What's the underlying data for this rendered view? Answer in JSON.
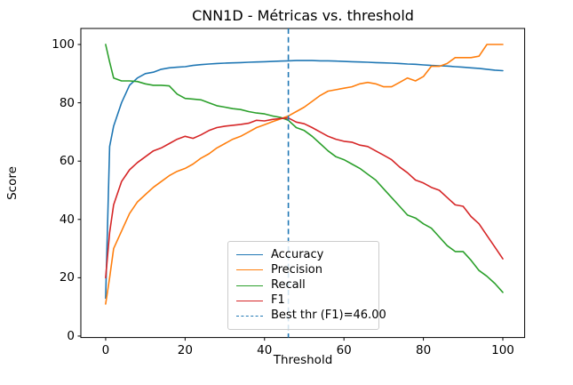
{
  "chart_data": {
    "type": "line",
    "title": "CNN1D - Métricas vs. threshold",
    "xlabel": "Threshold",
    "ylabel": "Score",
    "x_ticks": [
      0,
      20,
      40,
      60,
      80,
      100
    ],
    "y_ticks": [
      0,
      20,
      40,
      60,
      80,
      100
    ],
    "xlim": [
      -6.25,
      105.5
    ],
    "ylim": [
      -0.5,
      105.5
    ],
    "grid": false,
    "legend_position": "lower center",
    "x": [
      0,
      1,
      2,
      4,
      6,
      8,
      10,
      12,
      14,
      16,
      18,
      20,
      22,
      24,
      26,
      28,
      30,
      32,
      34,
      36,
      38,
      40,
      42,
      44,
      46,
      48,
      50,
      52,
      54,
      56,
      58,
      60,
      62,
      64,
      66,
      68,
      70,
      72,
      74,
      76,
      78,
      80,
      82,
      84,
      86,
      88,
      90,
      92,
      94,
      96,
      98,
      100
    ],
    "series": [
      {
        "name": "Accuracy",
        "color": "#1f77b4",
        "style": "solid",
        "values": [
          13,
          65,
          72,
          80,
          86,
          88.5,
          90,
          90.5,
          91.5,
          92,
          92.2,
          92.4,
          92.8,
          93.1,
          93.3,
          93.5,
          93.6,
          93.7,
          93.8,
          93.9,
          94,
          94.1,
          94.2,
          94.3,
          94.4,
          94.5,
          94.5,
          94.5,
          94.4,
          94.4,
          94.3,
          94.2,
          94.1,
          94,
          93.9,
          93.8,
          93.7,
          93.6,
          93.5,
          93.3,
          93.2,
          93,
          92.8,
          92.7,
          92.6,
          92.4,
          92.2,
          92,
          91.8,
          91.5,
          91.2,
          91
        ]
      },
      {
        "name": "Precision",
        "color": "#ff7f0e",
        "style": "solid",
        "values": [
          11,
          20,
          30,
          36,
          42,
          46,
          48.5,
          51,
          53,
          55,
          56.5,
          57.5,
          59,
          61,
          62.5,
          64.5,
          66,
          67.5,
          68.5,
          70,
          71.5,
          72.5,
          73.5,
          74.5,
          75.5,
          77,
          78.5,
          80.5,
          82.5,
          84,
          84.5,
          85,
          85.5,
          86.5,
          87,
          86.5,
          85.5,
          85.5,
          87,
          88.5,
          87.5,
          89,
          92.5,
          92.5,
          93.5,
          95.5,
          95.5,
          95.5,
          96,
          100,
          100,
          100
        ]
      },
      {
        "name": "Recall",
        "color": "#2ca02c",
        "style": "solid",
        "values": [
          100,
          94,
          88.5,
          87.5,
          87.5,
          87.3,
          86.5,
          86,
          86,
          85.8,
          83,
          81.5,
          81.3,
          81,
          80,
          79,
          78.5,
          78,
          77.7,
          77,
          76.5,
          76.2,
          75.5,
          75,
          74,
          71.5,
          70.5,
          68.5,
          66,
          63.5,
          61.5,
          60.5,
          59,
          57.5,
          55.5,
          53.5,
          50.5,
          47.5,
          44.5,
          41.5,
          40.5,
          38.5,
          37,
          34,
          31,
          29,
          29,
          26,
          22.5,
          20.5,
          18,
          15
        ]
      },
      {
        "name": "F1",
        "color": "#d62728",
        "style": "solid",
        "values": [
          20,
          35.5,
          45,
          53,
          57,
          59.5,
          61.5,
          63.5,
          64.5,
          66,
          67.5,
          68.5,
          67.8,
          69,
          70.5,
          71.5,
          72,
          72.3,
          72.6,
          73,
          74,
          73.8,
          74.3,
          74.6,
          74.8,
          73.4,
          72.8,
          71.5,
          70,
          68.5,
          67.5,
          66.8,
          66.5,
          65.5,
          65,
          63.5,
          62,
          60.5,
          58,
          56,
          53.5,
          52.5,
          51,
          50,
          47.5,
          45,
          44.5,
          41,
          38.5,
          34.5,
          30.5,
          26.5
        ]
      }
    ],
    "vline": {
      "label": "Best thr (F1)=46.00",
      "x": 46,
      "color": "#1f77b4",
      "style": "dashed"
    },
    "best_threshold": "46.00"
  }
}
